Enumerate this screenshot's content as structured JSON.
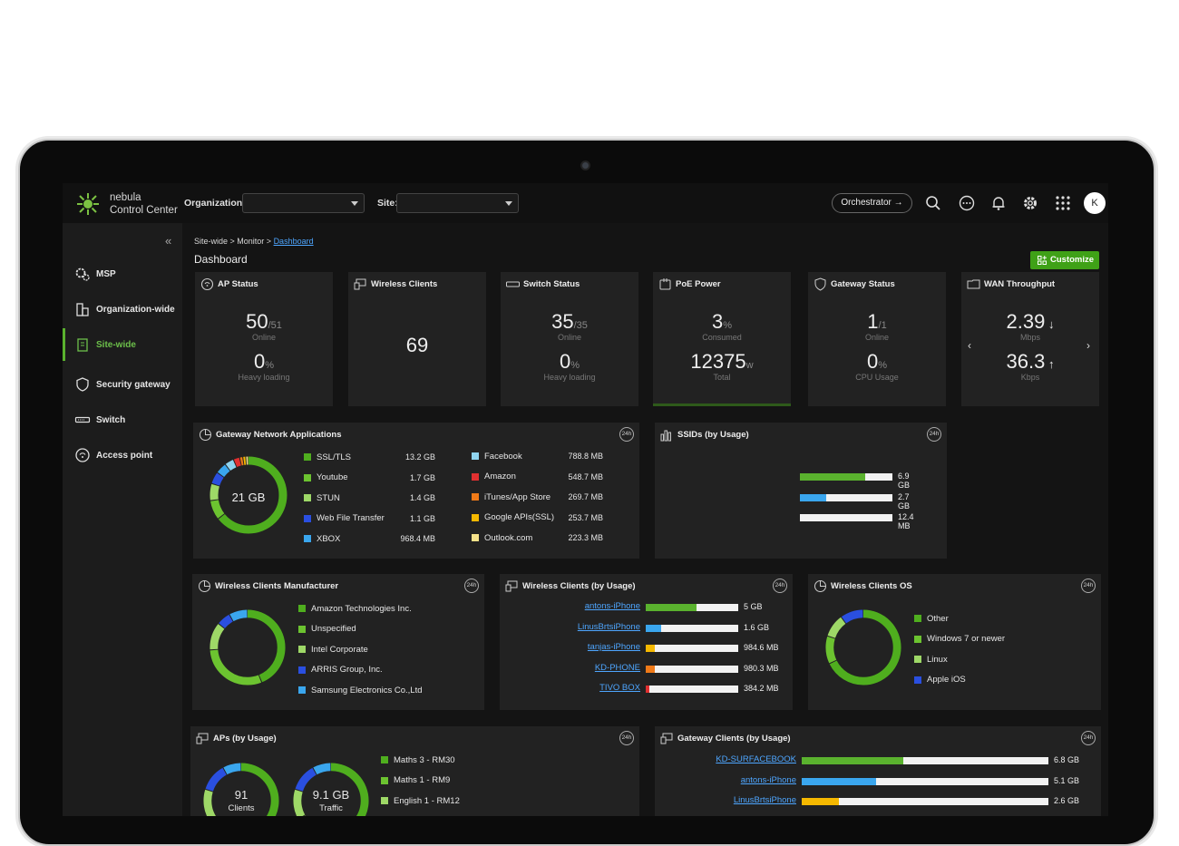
{
  "brand": {
    "line1": "nebula",
    "line2": "Control Center"
  },
  "topbar": {
    "org_label": "Organization:",
    "site_label": "Site:",
    "orchestrator": "Orchestrator →",
    "avatar": "K"
  },
  "sidebar": [
    {
      "label": "MSP"
    },
    {
      "label": "Organization-wide"
    },
    {
      "label": "Site-wide"
    },
    {
      "label": "Security gateway"
    },
    {
      "label": "Switch"
    },
    {
      "label": "Access point"
    }
  ],
  "breadcrumb": {
    "a": "Site-wide",
    "b": "Monitor",
    "c": "Dashboard"
  },
  "page_title": "Dashboard",
  "customize": "Customize",
  "tiles": {
    "ap": {
      "title": "AP Status",
      "v1": "50",
      "v1b": "51",
      "l1": "Online",
      "v2": "0",
      "u2": "%",
      "l2": "Heavy loading"
    },
    "wc": {
      "title": "Wireless Clients",
      "v": "69"
    },
    "sw": {
      "title": "Switch Status",
      "v1": "35",
      "v1b": "35",
      "l1": "Online",
      "v2": "0",
      "u2": "%",
      "l2": "Heavy loading"
    },
    "poe": {
      "title": "PoE Power",
      "v1": "3",
      "u1": "%",
      "l1": "Consumed",
      "v2": "12375",
      "u2": "w",
      "l2": "Total"
    },
    "gw": {
      "title": "Gateway Status",
      "v1": "1",
      "v1b": "1",
      "l1": "Online",
      "v2": "0",
      "u2": "%",
      "l2": "CPU Usage"
    },
    "wan": {
      "title": "WAN Throughput",
      "v1": "2.39",
      "l1": "Mbps",
      "v2": "36.3",
      "l2": "Kbps"
    }
  },
  "badge": "24h",
  "gna": {
    "title": "Gateway Network Applications",
    "center": "21 GB",
    "col1": [
      {
        "n": "SSL/TLS",
        "v": "13.2 GB",
        "c": "#4fae1e"
      },
      {
        "n": "Youtube",
        "v": "1.7 GB",
        "c": "#6cc330"
      },
      {
        "n": "STUN",
        "v": "1.4 GB",
        "c": "#9ed867"
      },
      {
        "n": "Web File Transfer",
        "v": "1.1 GB",
        "c": "#2a4fe0"
      },
      {
        "n": "XBOX",
        "v": "968.4 MB",
        "c": "#3aa6ee"
      }
    ],
    "col2": [
      {
        "n": "Facebook",
        "v": "788.8 MB",
        "c": "#8fd4f0"
      },
      {
        "n": "Amazon",
        "v": "548.7 MB",
        "c": "#e03030"
      },
      {
        "n": "iTunes/App Store",
        "v": "269.7 MB",
        "c": "#f07a18"
      },
      {
        "n": "Google APIs(SSL)",
        "v": "253.7 MB",
        "c": "#f5b800"
      },
      {
        "n": "Outlook.com",
        "v": "223.3 MB",
        "c": "#f6e28a"
      }
    ]
  },
  "ssids": {
    "title": "SSIDs (by Usage)",
    "rows": [
      {
        "v": "6.9 GB",
        "f": 0.71,
        "c": "#5ab22e"
      },
      {
        "v": "2.7 GB",
        "f": 0.28,
        "c": "#3aa6ee"
      },
      {
        "v": "12.4 MB",
        "f": 0.0,
        "c": "#3aa6ee"
      }
    ]
  },
  "wcm": {
    "title": "Wireless Clients Manufacturer",
    "items": [
      {
        "n": "Amazon Technologies Inc.",
        "c": "#4fae1e"
      },
      {
        "n": "Unspecified",
        "c": "#6cc330"
      },
      {
        "n": "Intel Corporate",
        "c": "#9ed867"
      },
      {
        "n": "ARRIS Group, Inc.",
        "c": "#2a4fe0"
      },
      {
        "n": "Samsung Electronics Co.,Ltd",
        "c": "#3aa6ee"
      }
    ]
  },
  "wcu": {
    "title": "Wireless Clients (by Usage)",
    "rows": [
      {
        "n": "antons-iPhone",
        "v": "5 GB",
        "f": 0.55,
        "c": "#5ab22e"
      },
      {
        "n": "LinusBrtsiPhone",
        "v": "1.6 GB",
        "f": 0.17,
        "c": "#3aa6ee"
      },
      {
        "n": "tanjas-iPhone",
        "v": "984.6 MB",
        "f": 0.1,
        "c": "#f5b800"
      },
      {
        "n": "KD-PHONE",
        "v": "980.3 MB",
        "f": 0.1,
        "c": "#f07a18"
      },
      {
        "n": "TIVO BOX",
        "v": "384.2 MB",
        "f": 0.04,
        "c": "#e03030"
      }
    ]
  },
  "wco": {
    "title": "Wireless Clients OS",
    "items": [
      {
        "n": "Other",
        "c": "#4fae1e"
      },
      {
        "n": "Windows 7 or newer",
        "c": "#6cc330"
      },
      {
        "n": "Linux",
        "c": "#9ed867"
      },
      {
        "n": "Apple iOS",
        "c": "#2a4fe0"
      }
    ]
  },
  "apu": {
    "title": "APs (by Usage)",
    "d1": "91",
    "d1l": "Clients",
    "d2": "9.1 GB",
    "d2l": "Traffic",
    "items": [
      {
        "n": "Maths 3 - RM30",
        "c": "#4fae1e"
      },
      {
        "n": "Maths 1 - RM9",
        "c": "#6cc330"
      },
      {
        "n": "English 1 - RM12",
        "c": "#9ed867"
      }
    ]
  },
  "gcu": {
    "title": "Gateway Clients (by Usage)",
    "rows": [
      {
        "n": "KD-SURFACEBOOK",
        "v": "6.8 GB",
        "f": 0.41,
        "c": "#5ab22e"
      },
      {
        "n": "antons-iPhone",
        "v": "5.1 GB",
        "f": 0.3,
        "c": "#3aa6ee"
      },
      {
        "n": "LinusBrtsiPhone",
        "v": "2.6 GB",
        "f": 0.15,
        "c": "#f5b800"
      }
    ]
  }
}
